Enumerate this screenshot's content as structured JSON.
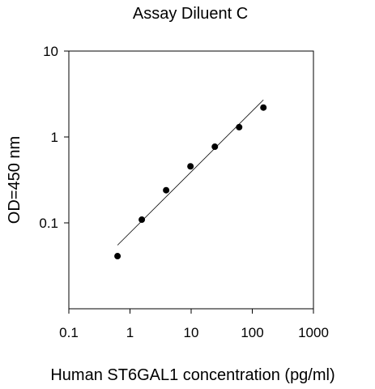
{
  "chart_data": {
    "type": "scatter",
    "title": "Assay Diluent C",
    "xlabel": "Human ST6GAL1 concentration (pg/ml)",
    "ylabel": "OD=450 nm",
    "x_scale": "log",
    "y_scale": "log",
    "xlim": [
      0.1,
      1000
    ],
    "ylim": [
      0.01,
      10
    ],
    "x_ticks": [
      0.1,
      1,
      10,
      100,
      1000
    ],
    "x_tick_labels": [
      "0.1",
      "1",
      "10",
      "100",
      "1000"
    ],
    "y_ticks": [
      0.1,
      1,
      10
    ],
    "y_tick_labels": [
      "0.1",
      "1",
      "10"
    ],
    "grid": false,
    "series": [
      {
        "x": [
          0.625,
          1.56,
          3.9,
          9.75,
          24.4,
          61,
          152
        ],
        "y": [
          0.041,
          0.109,
          0.24,
          0.455,
          0.77,
          1.3,
          2.2
        ]
      }
    ],
    "fit_line": {
      "x": [
        0.625,
        152
      ],
      "y": [
        0.055,
        2.7
      ]
    },
    "colors": {
      "points": "#000000",
      "line": "#000000",
      "axes": "#000000"
    }
  }
}
